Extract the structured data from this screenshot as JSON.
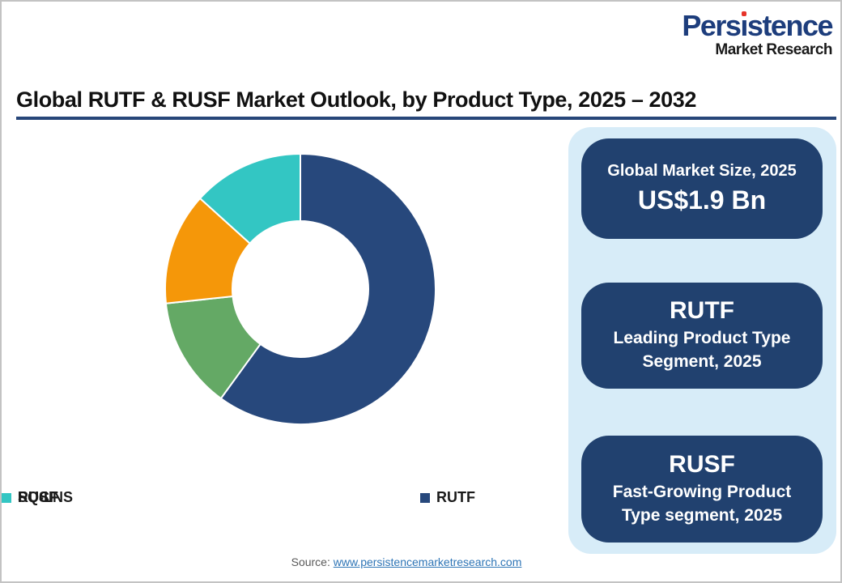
{
  "logo": {
    "part1": "Pers",
    "part2_dotless_i": "ı",
    "part3": "stence",
    "line2": "Market Research",
    "brand_blue": "#1d3d7c",
    "dot_red": "#e63329"
  },
  "header": {
    "title": "Global RUTF & RUSF Market Outlook, by Product Type, 2025 – 2032",
    "underline_color": "#274679"
  },
  "chart_data": {
    "type": "pie",
    "subtype": "donut",
    "title": "Global RUTF & RUSF Market Outlook, by Product Type, 2025 – 2032",
    "start_angle_deg": 0,
    "direction": "clockwise",
    "inner_radius_ratio": 0.5,
    "legend_position": "bottom",
    "segments": [
      {
        "label": "RUTF",
        "value_pct": 60.0,
        "color": "#27487c"
      },
      {
        "label": "RUSF",
        "value_pct": 13.3,
        "color": "#64a965"
      },
      {
        "label": "RUCF",
        "value_pct": 13.4,
        "color": "#f59709"
      },
      {
        "label": "SQ-LNS",
        "value_pct": 13.3,
        "color": "#33c6c3"
      }
    ]
  },
  "side_panel": {
    "bg_color": "#d7ecf8",
    "card_color": "#21416f",
    "cards": [
      {
        "line1": "Global Market Size, 2025",
        "line2": "US$1.9 Bn"
      },
      {
        "line1": "RUTF",
        "line2": "Leading Product Type Segment, 2025"
      },
      {
        "line1": "RUSF",
        "line2": "Fast-Growing Product Type segment, 2025"
      }
    ]
  },
  "footer": {
    "source_label": "Source:",
    "source_link": "www.persistencemarketresearch.com",
    "link_color": "#2e75b6"
  }
}
